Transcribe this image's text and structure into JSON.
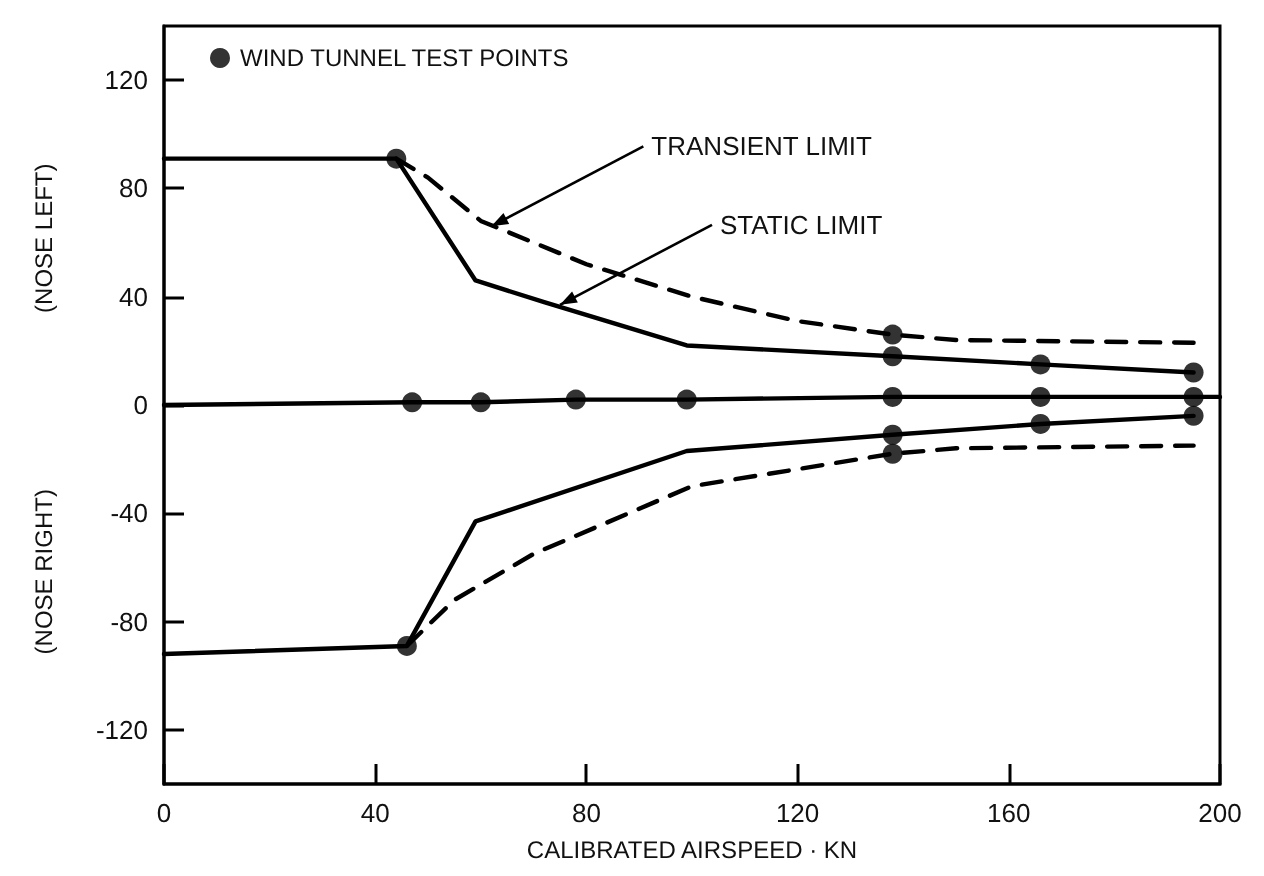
{
  "chart_data": {
    "type": "line",
    "xlabel": "CALIBRATED AIRSPEED · KN",
    "annotations": [
      "(NOSE LEFT)",
      "(NOSE RIGHT)",
      {
        "text": "TRANSIENT LIMIT",
        "x": 62,
        "y": 66
      },
      {
        "text": "STATIC LIMIT",
        "x": 75,
        "y": 37
      }
    ],
    "xlim": [
      0,
      200
    ],
    "xticks": [
      0,
      40,
      80,
      120,
      160,
      200
    ],
    "ylim": [
      -140,
      140
    ],
    "yticks": [
      -120,
      -80,
      -40,
      0,
      40,
      80,
      120
    ],
    "grid": false,
    "legend": "top left",
    "marker": "none",
    "series": [
      {
        "color": "#000000",
        "line_style": "solid",
        "x": [
          0,
          44,
          59,
          72,
          99,
          138,
          166,
          195
        ],
        "values": [
          91,
          91,
          46,
          38,
          22,
          18,
          15,
          12
        ]
      },
      {
        "color": "#000000",
        "line_style": "dashed",
        "x": [
          44,
          50,
          60,
          80,
          100,
          120,
          138,
          150,
          195
        ],
        "values": [
          91,
          84,
          68,
          52,
          40,
          31,
          26,
          24,
          23
        ]
      },
      {
        "color": "#000000",
        "line_style": "solid",
        "x": [
          0,
          47,
          60,
          78,
          99,
          138,
          166,
          195,
          200
        ],
        "values": [
          0,
          1,
          1,
          2,
          2,
          3,
          3,
          3,
          3
        ]
      },
      {
        "color": "#000000",
        "line_style": "solid",
        "x": [
          0,
          46,
          59,
          99,
          138,
          166,
          195
        ],
        "values": [
          -92,
          -89,
          -43,
          -17,
          -11,
          -7,
          -4
        ]
      },
      {
        "color": "#000000",
        "line_style": "dashed",
        "x": [
          46,
          55,
          70,
          100,
          138,
          150,
          195
        ],
        "values": [
          -89,
          -72,
          -55,
          -30,
          -18,
          -16,
          -15
        ]
      },
      {
        "type": "scatter",
        "name": "WIND TUNNEL TEST POINTS",
        "color": "#000000",
        "marker": "circle",
        "x": [
          44,
          46,
          47,
          60,
          78,
          99,
          138,
          138,
          138,
          138,
          138,
          166,
          166,
          166,
          195,
          195,
          195
        ],
        "values": [
          91,
          -89,
          1,
          1,
          2,
          2,
          3,
          26,
          18,
          -11,
          -18,
          3,
          15,
          -7,
          3,
          12,
          -4
        ]
      }
    ]
  }
}
